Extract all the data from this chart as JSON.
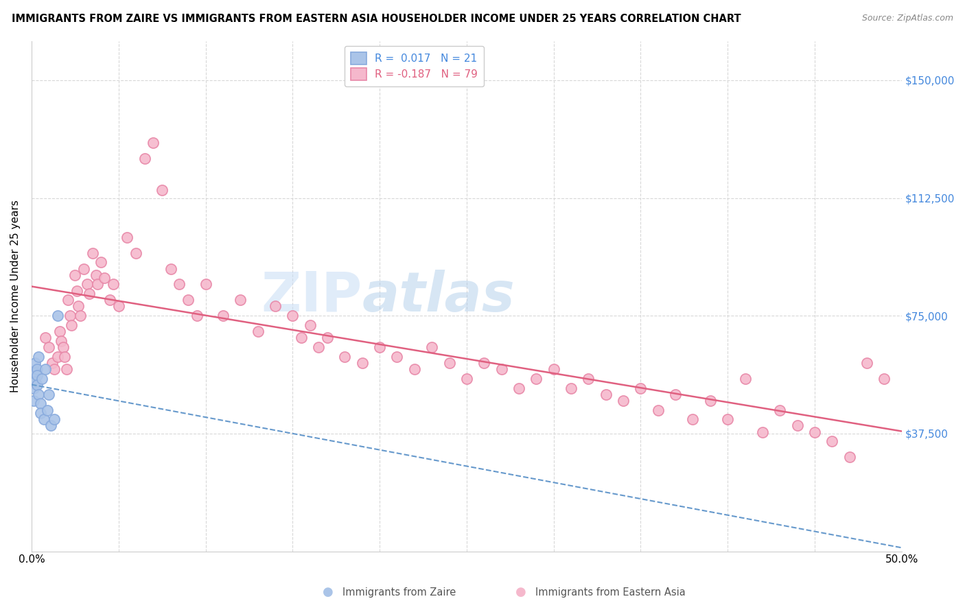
{
  "title": "IMMIGRANTS FROM ZAIRE VS IMMIGRANTS FROM EASTERN ASIA HOUSEHOLDER INCOME UNDER 25 YEARS CORRELATION CHART",
  "source": "Source: ZipAtlas.com",
  "ylabel": "Householder Income Under 25 years",
  "xlim": [
    0.0,
    0.5
  ],
  "ylim": [
    0,
    162500
  ],
  "yticks": [
    0,
    37500,
    75000,
    112500,
    150000
  ],
  "yticklabels": [
    "",
    "$37,500",
    "$75,000",
    "$112,500",
    "$150,000"
  ],
  "grid_color": "#d8d8d8",
  "background_color": "#ffffff",
  "watermark_zip": "ZIP",
  "watermark_atlas": "atlas",
  "zaire_color": "#aac4e8",
  "zaire_edge_color": "#88aadd",
  "eastern_asia_color": "#f5b8cc",
  "eastern_asia_edge_color": "#e888a8",
  "zaire_R": 0.017,
  "zaire_N": 21,
  "eastern_asia_R": -0.187,
  "eastern_asia_N": 79,
  "zaire_line_color": "#6699cc",
  "eastern_asia_line_color": "#e06080",
  "right_yaxis_color": "#4488dd",
  "legend_label_zaire": "Immigrants from Zaire",
  "legend_label_eastern_asia": "Immigrants from Eastern Asia",
  "zaire_x": [
    0.001,
    0.001,
    0.001,
    0.002,
    0.002,
    0.002,
    0.003,
    0.003,
    0.003,
    0.004,
    0.004,
    0.005,
    0.005,
    0.006,
    0.007,
    0.008,
    0.009,
    0.01,
    0.011,
    0.013,
    0.015
  ],
  "zaire_y": [
    55000,
    52000,
    48000,
    60000,
    57000,
    54000,
    58000,
    56000,
    53000,
    62000,
    50000,
    47000,
    44000,
    55000,
    42000,
    58000,
    45000,
    50000,
    40000,
    42000,
    75000
  ],
  "eastern_asia_x": [
    0.008,
    0.01,
    0.012,
    0.013,
    0.015,
    0.016,
    0.017,
    0.018,
    0.019,
    0.02,
    0.021,
    0.022,
    0.023,
    0.025,
    0.026,
    0.027,
    0.028,
    0.03,
    0.032,
    0.033,
    0.035,
    0.037,
    0.038,
    0.04,
    0.042,
    0.045,
    0.047,
    0.05,
    0.055,
    0.06,
    0.065,
    0.07,
    0.075,
    0.08,
    0.085,
    0.09,
    0.095,
    0.1,
    0.11,
    0.12,
    0.13,
    0.14,
    0.15,
    0.155,
    0.16,
    0.165,
    0.17,
    0.18,
    0.19,
    0.2,
    0.21,
    0.22,
    0.23,
    0.24,
    0.25,
    0.26,
    0.27,
    0.28,
    0.29,
    0.3,
    0.31,
    0.32,
    0.33,
    0.34,
    0.35,
    0.36,
    0.37,
    0.38,
    0.39,
    0.4,
    0.41,
    0.42,
    0.43,
    0.44,
    0.45,
    0.46,
    0.47,
    0.48,
    0.49
  ],
  "eastern_asia_y": [
    68000,
    65000,
    60000,
    58000,
    62000,
    70000,
    67000,
    65000,
    62000,
    58000,
    80000,
    75000,
    72000,
    88000,
    83000,
    78000,
    75000,
    90000,
    85000,
    82000,
    95000,
    88000,
    85000,
    92000,
    87000,
    80000,
    85000,
    78000,
    100000,
    95000,
    125000,
    130000,
    115000,
    90000,
    85000,
    80000,
    75000,
    85000,
    75000,
    80000,
    70000,
    78000,
    75000,
    68000,
    72000,
    65000,
    68000,
    62000,
    60000,
    65000,
    62000,
    58000,
    65000,
    60000,
    55000,
    60000,
    58000,
    52000,
    55000,
    58000,
    52000,
    55000,
    50000,
    48000,
    52000,
    45000,
    50000,
    42000,
    48000,
    42000,
    55000,
    38000,
    45000,
    40000,
    38000,
    35000,
    30000,
    60000,
    55000
  ]
}
